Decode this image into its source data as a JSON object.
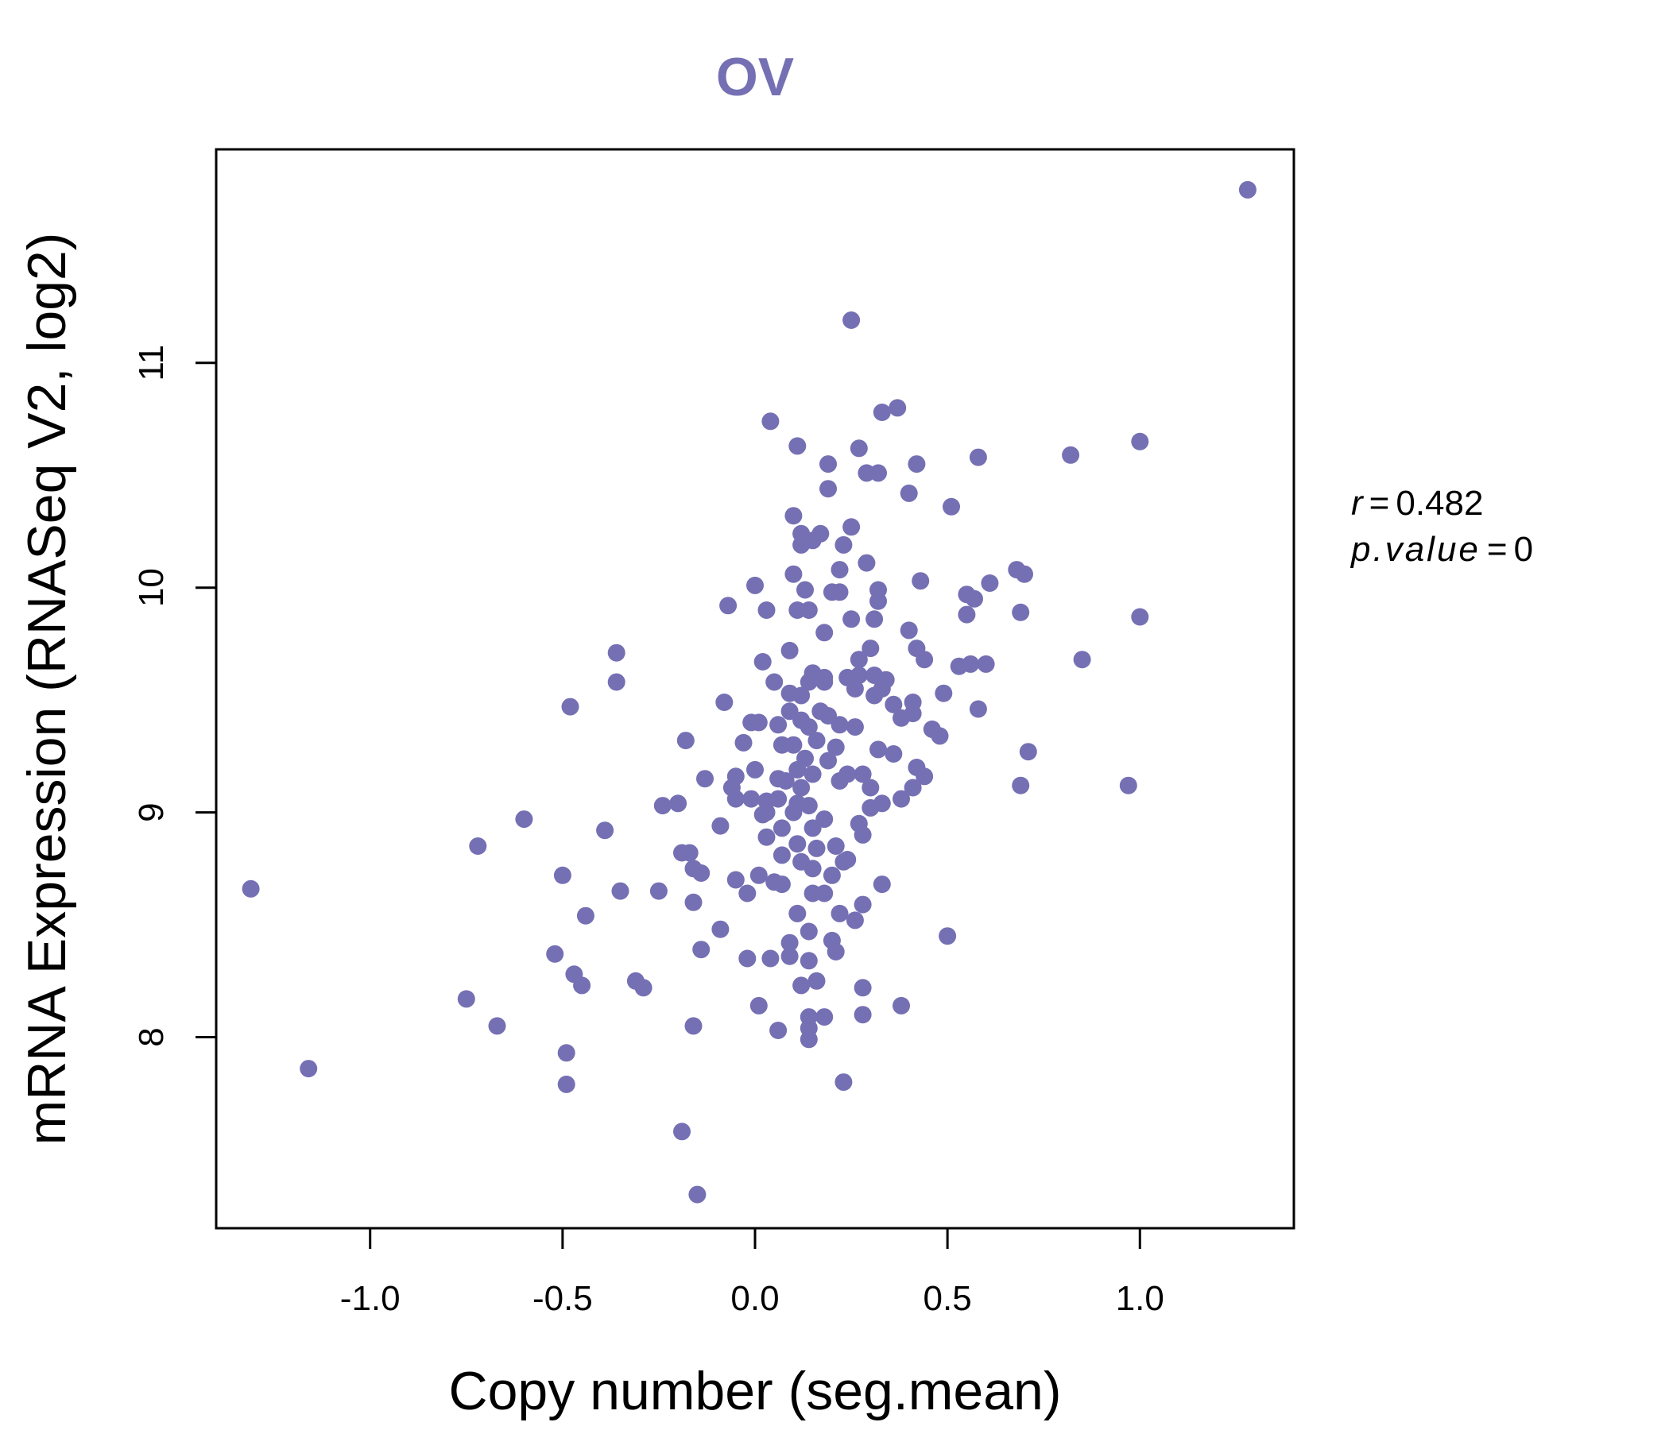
{
  "colors": {
    "point": "#7570B3",
    "title": "#7570B3",
    "axis": "#000000"
  },
  "chart_data": {
    "type": "scatter",
    "title": "OV",
    "xlabel": "Copy number (seg.mean)",
    "ylabel": "mRNA Expression (RNASeq V2, log2)",
    "xlim": [
      -1.4,
      1.4
    ],
    "ylim": [
      7.15,
      11.95
    ],
    "xticks": [
      -1.0,
      -0.5,
      0.0,
      0.5,
      1.0
    ],
    "xtick_labels": [
      "-1.0",
      "-0.5",
      "0.0",
      "0.5",
      "1.0"
    ],
    "yticks": [
      8,
      9,
      10,
      11
    ],
    "ytick_labels": [
      "8",
      "9",
      "10",
      "11"
    ],
    "stats": {
      "r_label": "r",
      "r_value": "0.482",
      "p_label": "p.value",
      "p_value": "0"
    },
    "points": [
      [
        1.28,
        11.77
      ],
      [
        0.25,
        11.19
      ],
      [
        0.04,
        10.74
      ],
      [
        0.37,
        10.8
      ],
      [
        0.33,
        10.78
      ],
      [
        1.0,
        10.65
      ],
      [
        0.11,
        10.63
      ],
      [
        0.27,
        10.62
      ],
      [
        0.58,
        10.58
      ],
      [
        0.82,
        10.59
      ],
      [
        0.19,
        10.55
      ],
      [
        0.42,
        10.55
      ],
      [
        0.29,
        10.51
      ],
      [
        0.32,
        10.51
      ],
      [
        0.19,
        10.44
      ],
      [
        0.4,
        10.42
      ],
      [
        0.51,
        10.36
      ],
      [
        0.1,
        10.32
      ],
      [
        0.12,
        10.24
      ],
      [
        0.17,
        10.24
      ],
      [
        0.25,
        10.27
      ],
      [
        0.12,
        10.19
      ],
      [
        0.15,
        10.21
      ],
      [
        0.23,
        10.19
      ],
      [
        0.29,
        10.11
      ],
      [
        0.22,
        10.08
      ],
      [
        0.1,
        10.06
      ],
      [
        0.68,
        10.08
      ],
      [
        0.7,
        10.06
      ],
      [
        -0.0,
        10.01
      ],
      [
        0.13,
        9.99
      ],
      [
        0.2,
        9.98
      ],
      [
        0.22,
        9.98
      ],
      [
        0.32,
        9.99
      ],
      [
        0.43,
        10.03
      ],
      [
        0.61,
        10.02
      ],
      [
        0.55,
        9.97
      ],
      [
        0.57,
        9.95
      ],
      [
        0.32,
        9.94
      ],
      [
        -0.07,
        9.92
      ],
      [
        0.03,
        9.9
      ],
      [
        0.11,
        9.9
      ],
      [
        0.14,
        9.9
      ],
      [
        0.25,
        9.86
      ],
      [
        0.31,
        9.86
      ],
      [
        0.55,
        9.88
      ],
      [
        0.69,
        9.89
      ],
      [
        1.0,
        9.87
      ],
      [
        0.18,
        9.8
      ],
      [
        0.4,
        9.81
      ],
      [
        0.09,
        9.72
      ],
      [
        0.3,
        9.73
      ],
      [
        0.42,
        9.73
      ],
      [
        0.44,
        9.68
      ],
      [
        -0.36,
        9.71
      ],
      [
        0.02,
        9.67
      ],
      [
        0.27,
        9.68
      ],
      [
        0.53,
        9.65
      ],
      [
        0.56,
        9.66
      ],
      [
        0.6,
        9.66
      ],
      [
        0.85,
        9.68
      ],
      [
        0.15,
        9.62
      ],
      [
        0.24,
        9.6
      ],
      [
        0.27,
        9.61
      ],
      [
        0.31,
        9.61
      ],
      [
        0.34,
        9.59
      ],
      [
        -0.36,
        9.58
      ],
      [
        0.05,
        9.58
      ],
      [
        0.14,
        9.58
      ],
      [
        0.18,
        9.58
      ],
      [
        0.26,
        9.55
      ],
      [
        0.33,
        9.55
      ],
      [
        0.09,
        9.53
      ],
      [
        0.12,
        9.52
      ],
      [
        0.31,
        9.52
      ],
      [
        0.36,
        9.48
      ],
      [
        0.41,
        9.49
      ],
      [
        0.49,
        9.53
      ],
      [
        -0.48,
        9.47
      ],
      [
        -0.08,
        9.49
      ],
      [
        0.09,
        9.45
      ],
      [
        0.17,
        9.45
      ],
      [
        0.19,
        9.43
      ],
      [
        0.12,
        9.41
      ],
      [
        0.22,
        9.39
      ],
      [
        0.38,
        9.42
      ],
      [
        0.41,
        9.44
      ],
      [
        0.58,
        9.46
      ],
      [
        -0.01,
        9.4
      ],
      [
        0.01,
        9.4
      ],
      [
        0.06,
        9.39
      ],
      [
        0.14,
        9.38
      ],
      [
        0.26,
        9.38
      ],
      [
        0.46,
        9.37
      ],
      [
        0.48,
        9.34
      ],
      [
        -0.18,
        9.32
      ],
      [
        -0.03,
        9.31
      ],
      [
        0.07,
        9.3
      ],
      [
        0.1,
        9.3
      ],
      [
        0.16,
        9.32
      ],
      [
        0.21,
        9.29
      ],
      [
        0.32,
        9.28
      ],
      [
        0.36,
        9.26
      ],
      [
        0.71,
        9.27
      ],
      [
        0.19,
        9.23
      ],
      [
        0.11,
        9.19
      ],
      [
        0.0,
        9.19
      ],
      [
        0.15,
        9.17
      ],
      [
        0.24,
        9.17
      ],
      [
        0.28,
        9.17
      ],
      [
        0.42,
        9.2
      ],
      [
        0.44,
        9.16
      ],
      [
        -0.13,
        9.15
      ],
      [
        -0.05,
        9.16
      ],
      [
        0.06,
        9.15
      ],
      [
        0.08,
        9.14
      ],
      [
        0.12,
        9.11
      ],
      [
        0.22,
        9.14
      ],
      [
        0.3,
        9.11
      ],
      [
        0.41,
        9.11
      ],
      [
        -0.06,
        9.11
      ],
      [
        0.69,
        9.12
      ],
      [
        0.97,
        9.12
      ],
      [
        -0.05,
        9.06
      ],
      [
        -0.01,
        9.06
      ],
      [
        0.03,
        9.05
      ],
      [
        0.06,
        9.06
      ],
      [
        0.11,
        9.04
      ],
      [
        0.14,
        9.03
      ],
      [
        0.3,
        9.02
      ],
      [
        0.33,
        9.04
      ],
      [
        0.38,
        9.06
      ],
      [
        -0.24,
        9.03
      ],
      [
        -0.2,
        9.04
      ],
      [
        0.03,
        9.0
      ],
      [
        0.1,
        9.0
      ],
      [
        0.18,
        8.97
      ],
      [
        0.27,
        8.95
      ],
      [
        0.28,
        8.9
      ],
      [
        -0.6,
        8.97
      ],
      [
        -0.39,
        8.92
      ],
      [
        -0.09,
        8.94
      ],
      [
        0.07,
        8.93
      ],
      [
        0.03,
        8.89
      ],
      [
        0.11,
        8.86
      ],
      [
        0.16,
        8.84
      ],
      [
        0.21,
        8.85
      ],
      [
        0.23,
        8.78
      ],
      [
        -0.72,
        8.85
      ],
      [
        -0.19,
        8.82
      ],
      [
        -0.17,
        8.82
      ],
      [
        0.07,
        8.81
      ],
      [
        0.12,
        8.78
      ],
      [
        0.15,
        8.75
      ],
      [
        -0.5,
        8.72
      ],
      [
        -0.16,
        8.75
      ],
      [
        -0.14,
        8.73
      ],
      [
        0.01,
        8.72
      ],
      [
        0.05,
        8.69
      ],
      [
        0.07,
        8.68
      ],
      [
        -1.31,
        8.66
      ],
      [
        -0.35,
        8.65
      ],
      [
        -0.25,
        8.65
      ],
      [
        -0.05,
        8.7
      ],
      [
        -0.02,
        8.64
      ],
      [
        0.15,
        8.64
      ],
      [
        0.18,
        8.64
      ],
      [
        0.33,
        8.68
      ],
      [
        -0.16,
        8.6
      ],
      [
        0.28,
        8.59
      ],
      [
        -0.44,
        8.54
      ],
      [
        0.11,
        8.55
      ],
      [
        0.22,
        8.55
      ],
      [
        0.26,
        8.52
      ],
      [
        -0.09,
        8.48
      ],
      [
        0.14,
        8.47
      ],
      [
        0.2,
        8.43
      ],
      [
        0.5,
        8.45
      ],
      [
        -0.14,
        8.39
      ],
      [
        -0.52,
        8.37
      ],
      [
        -0.02,
        8.35
      ],
      [
        0.04,
        8.35
      ],
      [
        0.09,
        8.36
      ],
      [
        0.14,
        8.34
      ],
      [
        0.21,
        8.38
      ],
      [
        -0.47,
        8.28
      ],
      [
        -0.31,
        8.25
      ],
      [
        -0.29,
        8.22
      ],
      [
        -0.45,
        8.23
      ],
      [
        0.12,
        8.23
      ],
      [
        0.16,
        8.25
      ],
      [
        0.28,
        8.22
      ],
      [
        -0.75,
        8.17
      ],
      [
        0.01,
        8.14
      ],
      [
        0.38,
        8.14
      ],
      [
        0.14,
        8.09
      ],
      [
        0.18,
        8.09
      ],
      [
        0.28,
        8.1
      ],
      [
        -0.67,
        8.05
      ],
      [
        -0.16,
        8.05
      ],
      [
        0.06,
        8.03
      ],
      [
        0.14,
        8.04
      ],
      [
        0.14,
        7.99
      ],
      [
        -0.49,
        7.93
      ],
      [
        -1.16,
        7.86
      ],
      [
        -0.49,
        7.79
      ],
      [
        0.23,
        7.8
      ],
      [
        -0.19,
        7.58
      ],
      [
        -0.15,
        7.3
      ],
      [
        0.02,
        8.99
      ],
      [
        0.18,
        9.6
      ],
      [
        0.2,
        8.72
      ],
      [
        0.15,
        8.93
      ],
      [
        0.09,
        8.42
      ],
      [
        0.24,
        8.79
      ],
      [
        0.13,
        9.24
      ]
    ]
  }
}
